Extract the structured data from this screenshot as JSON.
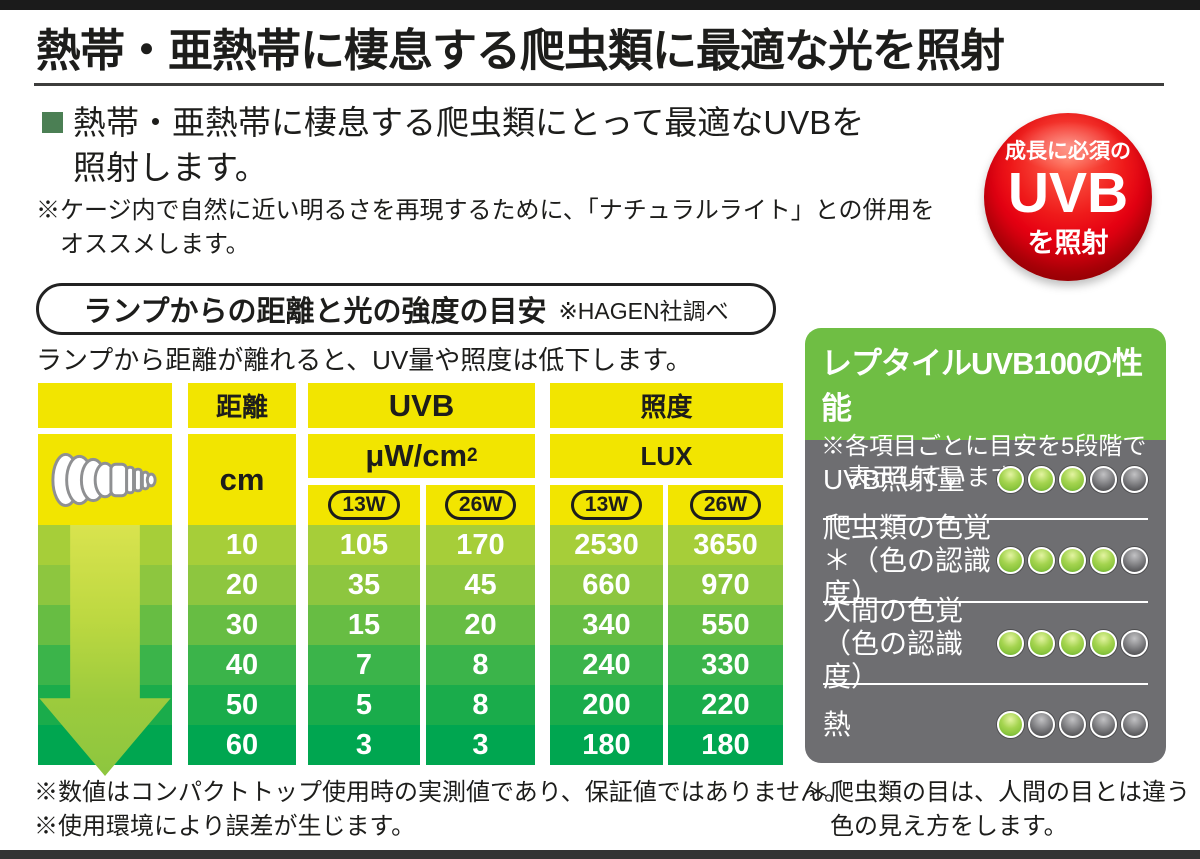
{
  "page": {
    "title": "熱帯・亜熱帯に棲息する爬虫類に最適な光を照射",
    "lead_line1": "熱帯・亜熱帯に棲息する爬虫類にとって最適なUVBを",
    "lead_line2": "照射します。",
    "note_line1": "※ケージ内で自然に近い明るさを再現するために、「ナチュラルライト」との併用を",
    "note_line2": "オススメします。"
  },
  "badge": {
    "line1": "成長に必須の",
    "line2": "UVB",
    "line3": "を照射",
    "color": "#e60012"
  },
  "section": {
    "pill_title": "ランプからの距離と光の強度の目安",
    "pill_note": "※HAGEN社調べ",
    "caption": "ランプから距離が離れると、UV量や照度は低下します。"
  },
  "table": {
    "headers": {
      "distance": "距離",
      "distance_unit": "cm",
      "uvb": "UVB",
      "uvb_unit_base": "μW/cm",
      "uvb_unit_sup": "2",
      "illuminance": "照度",
      "illuminance_unit": "LUX",
      "w13": "13W",
      "w26": "26W"
    },
    "rows": [
      {
        "cm": "10",
        "uvb13": "105",
        "uvb26": "170",
        "lux13": "2530",
        "lux26": "3650"
      },
      {
        "cm": "20",
        "uvb13": "35",
        "uvb26": "45",
        "lux13": "660",
        "lux26": "970"
      },
      {
        "cm": "30",
        "uvb13": "15",
        "uvb26": "20",
        "lux13": "340",
        "lux26": "550"
      },
      {
        "cm": "40",
        "uvb13": "7",
        "uvb26": "8",
        "lux13": "240",
        "lux26": "330"
      },
      {
        "cm": "50",
        "uvb13": "5",
        "uvb26": "8",
        "lux13": "200",
        "lux26": "220"
      },
      {
        "cm": "60",
        "uvb13": "3",
        "uvb26": "3",
        "lux13": "180",
        "lux26": "180"
      }
    ],
    "row_colors": [
      "#a6ce39",
      "#8dc63f",
      "#67bd43",
      "#3bb44a",
      "#1aac4b",
      "#00a650"
    ],
    "yellow": "#f2e500"
  },
  "panel": {
    "title": "レプタイルUVB100の性能",
    "note_line1": "※各項目ごとに目安を5段階で",
    "note_line2": "表示しています。",
    "header_color": "#6fbe44",
    "body_color": "#6e6e71",
    "rating_scale": 5,
    "rows": [
      {
        "label": "UVB照射量",
        "label2": "",
        "rating": 3
      },
      {
        "label": "爬虫類の色覚",
        "label2": "＊（色の認識度）",
        "rating": 4
      },
      {
        "label": "人間の色覚",
        "label2": "（色の認識度）",
        "rating": 4
      },
      {
        "label": "熱",
        "label2": "",
        "rating": 1
      }
    ],
    "dot_on": "#8dc63f",
    "dot_off": "#58585a"
  },
  "footnotes": {
    "left1": "※数値はコンパクトトップ使用時の実測値であり、保証値ではありません。",
    "left2": "※使用環境により誤差が生じます。",
    "right1": "＊爬虫類の目は、人間の目とは違う",
    "right2": "色の見え方をします。"
  }
}
